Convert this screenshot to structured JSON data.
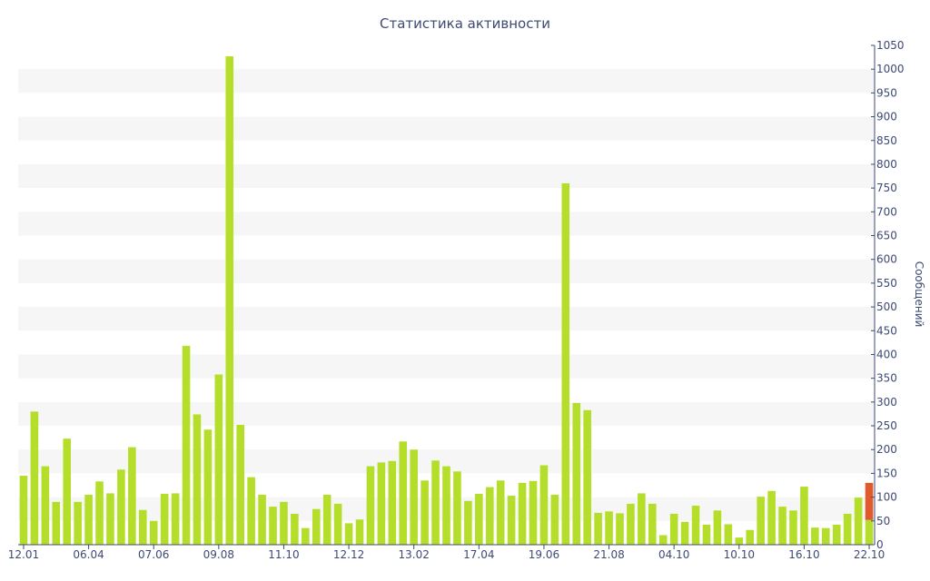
{
  "chart_data": {
    "type": "bar",
    "title": "Статистика активности",
    "xlabel": "",
    "ylabel": "Сообщений",
    "ylim": [
      0,
      1050
    ],
    "y_tick_step": 50,
    "y_axis_side": "right",
    "grid": "alternating horizontal bands",
    "legend": "none",
    "x_tick_labels": [
      "12.01",
      "06.04",
      "07.06",
      "09.08",
      "11.10",
      "12.12",
      "13.02",
      "17.04",
      "19.06",
      "21.08",
      "04.10",
      "10.10",
      "16.10",
      "22.10"
    ],
    "x_tick_bar_index": [
      0,
      6,
      12,
      18,
      24,
      30,
      36,
      42,
      48,
      54,
      60,
      66,
      72,
      78
    ],
    "colors": {
      "bar": "#b5de2b",
      "highlight": "#e05a2b",
      "text": "#3d4a73",
      "band": "#f6f6f6"
    },
    "series": [
      {
        "values": [
          145,
          280,
          165,
          90,
          223,
          90,
          105,
          133,
          108,
          158,
          205,
          73,
          50,
          107,
          108,
          418,
          274,
          242,
          358,
          1027,
          252,
          142,
          105,
          80,
          90,
          65,
          35,
          75,
          105,
          86,
          45,
          53,
          165,
          173,
          176,
          217,
          200,
          135,
          177,
          165,
          154,
          92,
          107,
          121,
          135,
          103,
          130,
          134,
          167,
          105,
          760,
          298,
          283,
          67,
          70,
          66,
          86,
          108,
          86,
          20,
          65,
          48,
          82,
          42,
          72,
          43,
          15,
          31,
          101,
          113,
          80,
          72,
          122,
          36,
          35,
          42,
          65,
          99,
          52
        ]
      },
      {
        "values": [
          0,
          0,
          0,
          0,
          0,
          0,
          0,
          0,
          0,
          0,
          0,
          0,
          0,
          0,
          0,
          0,
          0,
          0,
          0,
          0,
          0,
          0,
          0,
          0,
          0,
          0,
          0,
          0,
          0,
          0,
          0,
          0,
          0,
          0,
          0,
          0,
          0,
          0,
          0,
          0,
          0,
          0,
          0,
          0,
          0,
          0,
          0,
          0,
          0,
          0,
          0,
          0,
          0,
          0,
          0,
          0,
          0,
          0,
          0,
          0,
          0,
          0,
          0,
          0,
          0,
          0,
          0,
          0,
          0,
          0,
          0,
          0,
          0,
          0,
          0,
          0,
          0,
          0,
          78
        ]
      }
    ]
  }
}
